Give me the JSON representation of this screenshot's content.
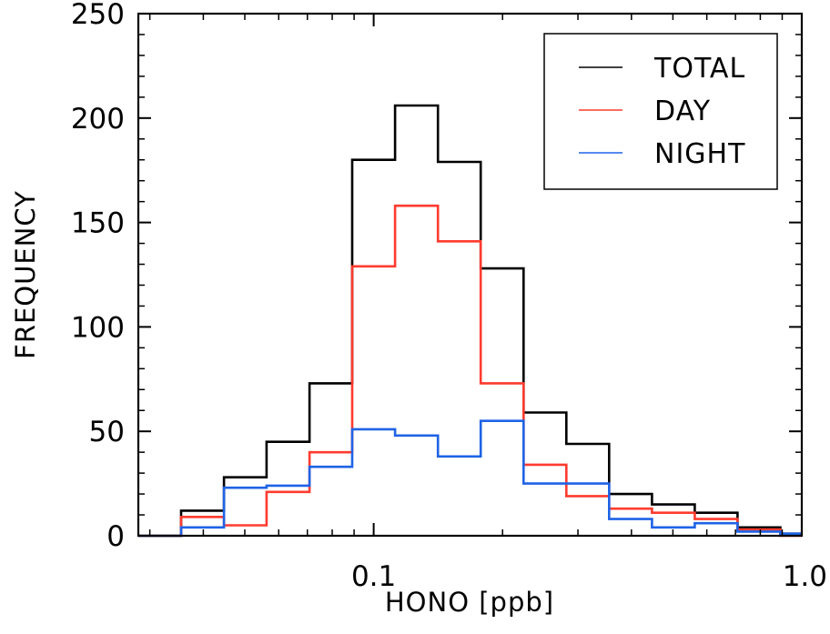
{
  "chart_data": {
    "type": "line",
    "step": true,
    "title": "",
    "xlabel": "HONO [ppb]",
    "ylabel": "FREQUENCY",
    "x_scale": "log",
    "xlim": [
      0.0282,
      1.0
    ],
    "ylim": [
      0,
      250
    ],
    "xticks": [
      {
        "value": 0.1,
        "label": "0.1"
      },
      {
        "value": 1.0,
        "label": "1.0"
      }
    ],
    "yticks": [
      {
        "value": 0,
        "label": "0"
      },
      {
        "value": 50,
        "label": "50"
      },
      {
        "value": 100,
        "label": "100"
      },
      {
        "value": 150,
        "label": "150"
      },
      {
        "value": 200,
        "label": "200"
      },
      {
        "value": 250,
        "label": "250"
      }
    ],
    "bin_edges": [
      0.0282,
      0.0355,
      0.0447,
      0.0562,
      0.0708,
      0.0891,
      0.1122,
      0.1413,
      0.1778,
      0.2239,
      0.2818,
      0.3548,
      0.4467,
      0.5623,
      0.7079,
      0.8913,
      1.0
    ],
    "series": [
      {
        "name": "TOTAL",
        "color": "#000000",
        "values": [
          0,
          12,
          28,
          45,
          73,
          180,
          206,
          179,
          128,
          59,
          44,
          20,
          15,
          11,
          4,
          1
        ]
      },
      {
        "name": "DAY",
        "color": "#ff3b2f",
        "values": [
          0,
          9,
          5,
          21,
          40,
          129,
          158,
          141,
          73,
          34,
          19,
          13,
          11,
          8,
          3,
          0
        ]
      },
      {
        "name": "NIGHT",
        "color": "#1f63e6",
        "values": [
          0,
          4,
          23,
          24,
          33,
          51,
          48,
          38,
          55,
          25,
          25,
          8,
          4,
          6,
          2,
          1
        ]
      }
    ],
    "legend": {
      "position": "top-right",
      "boxed": true
    },
    "grid": false
  }
}
